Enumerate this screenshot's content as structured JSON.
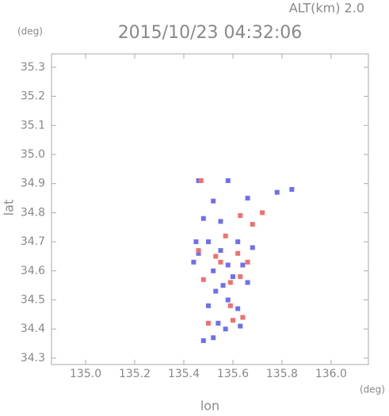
{
  "chart_data": {
    "type": "scatter",
    "title": "2015/10/23 04:32:06",
    "annotation": "ALT(km) 2.0",
    "x_label": "lon",
    "x_unit": "(deg)",
    "y_label": "lat",
    "y_unit": "(deg)",
    "xlim": [
      134.861,
      136.152
    ],
    "ylim": [
      34.278,
      35.346
    ],
    "xticks": [
      {
        "value": 135,
        "label": "135.0"
      },
      135.2,
      135.4,
      135.6,
      135.8,
      {
        "value": 136,
        "label": "136.0"
      }
    ],
    "yticks": [
      34.3,
      34.4,
      34.5,
      34.6,
      34.7,
      34.8,
      34.9,
      {
        "value": 35,
        "label": "35.0"
      },
      35.1,
      35.2,
      35.3
    ],
    "series": [
      {
        "color": "#6f6ff0",
        "x": [
          135.46,
          135.58,
          135.52,
          135.48,
          135.55,
          135.66,
          135.78,
          135.84,
          135.45,
          135.46,
          135.5,
          135.55,
          135.58,
          135.52,
          135.6,
          135.64,
          135.56,
          135.66,
          135.5,
          135.58,
          135.62,
          135.54,
          135.63,
          135.48,
          135.52,
          135.57,
          135.44,
          135.62,
          135.68,
          135.53
        ],
        "values": [
          34.91,
          34.91,
          34.84,
          34.78,
          34.77,
          34.85,
          34.87,
          34.88,
          34.7,
          34.66,
          34.7,
          34.67,
          34.62,
          34.6,
          34.58,
          34.62,
          34.55,
          34.56,
          34.48,
          34.5,
          34.47,
          34.42,
          34.41,
          34.36,
          34.37,
          34.4,
          34.63,
          34.7,
          34.68,
          34.53
        ]
      },
      {
        "color": "#f07070",
        "x": [
          135.47,
          135.63,
          135.72,
          135.68,
          135.57,
          135.62,
          135.55,
          135.63,
          135.59,
          135.48,
          135.66,
          135.59,
          135.64,
          135.5,
          135.6,
          135.46,
          135.53
        ],
        "values": [
          34.91,
          34.79,
          34.8,
          34.76,
          34.72,
          34.66,
          34.63,
          34.58,
          34.56,
          34.57,
          34.63,
          34.48,
          34.44,
          34.42,
          34.43,
          34.67,
          34.65
        ]
      }
    ]
  }
}
